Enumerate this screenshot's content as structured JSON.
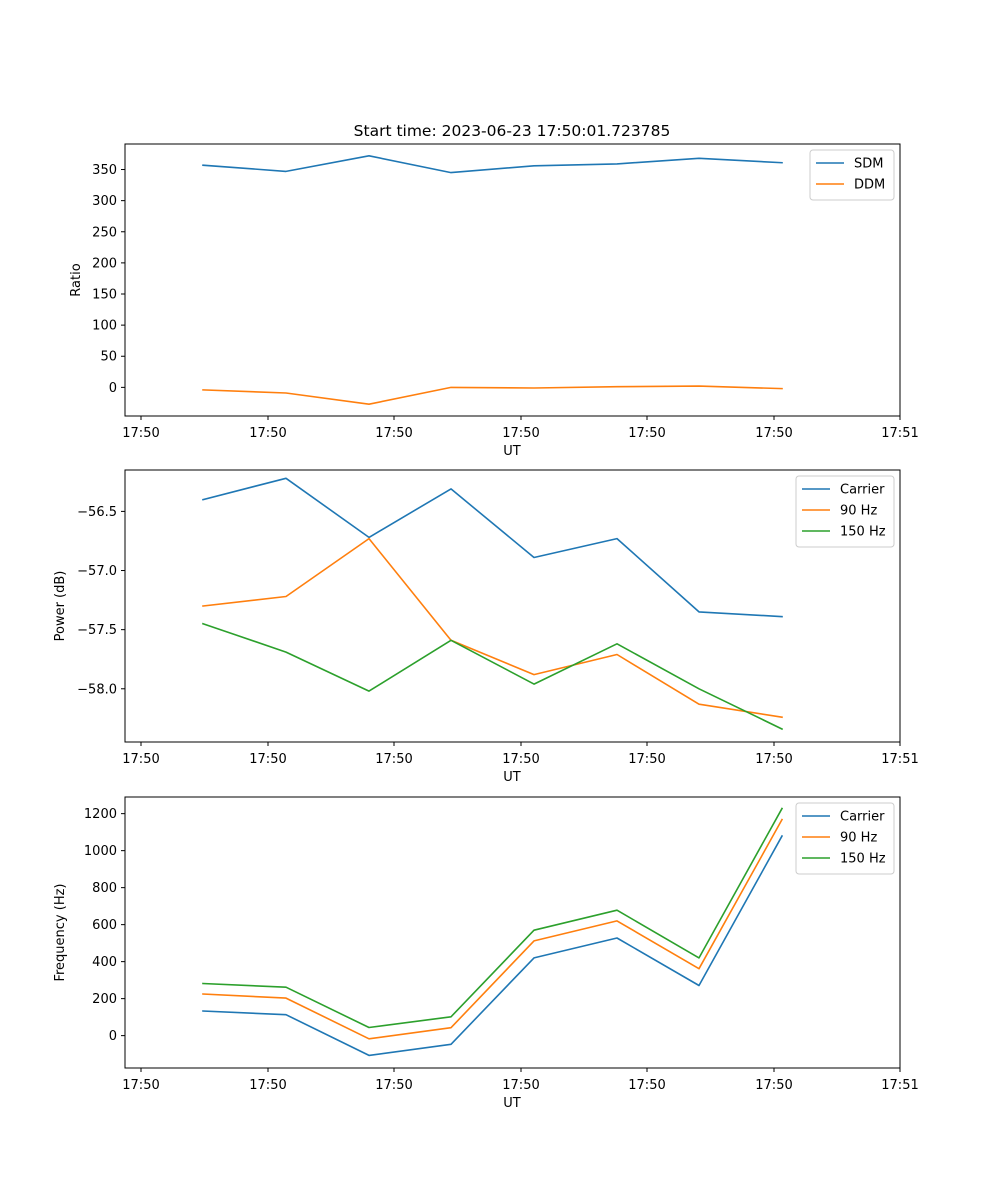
{
  "chart_data": [
    {
      "type": "line",
      "title": "Start time: 2023-06-23 17:50:01.723785",
      "xlabel": "UT",
      "ylabel": "Ratio",
      "x_tick_labels": [
        "17:50",
        "17:50",
        "17:50",
        "17:50",
        "17:50",
        "17:50",
        "17:51"
      ],
      "y_ticks": [
        0,
        50,
        100,
        150,
        200,
        250,
        300,
        350
      ],
      "ylim": [
        -46,
        391
      ],
      "legend_position": "top-right",
      "grid": false,
      "series": [
        {
          "name": "SDM",
          "color": "#1f77b4",
          "values": [
            357,
            347,
            372,
            345,
            356,
            359,
            368,
            361
          ]
        },
        {
          "name": "DDM",
          "color": "#ff7f0e",
          "values": [
            -4,
            -9,
            -27,
            0,
            -1,
            1,
            2,
            -2
          ]
        }
      ]
    },
    {
      "type": "line",
      "title": "",
      "xlabel": "UT",
      "ylabel": "Power (dB)",
      "x_tick_labels": [
        "17:50",
        "17:50",
        "17:50",
        "17:50",
        "17:50",
        "17:50",
        "17:51"
      ],
      "y_ticks": [
        -58.0,
        -57.5,
        -57.0,
        -56.5
      ],
      "y_tick_labels": [
        "−58.0",
        "−57.5",
        "−57.0",
        "−56.5"
      ],
      "ylim": [
        -58.45,
        -56.15
      ],
      "legend_position": "top-right",
      "grid": false,
      "series": [
        {
          "name": "Carrier",
          "color": "#1f77b4",
          "values": [
            -56.4,
            -56.22,
            -56.72,
            -56.31,
            -56.89,
            -56.73,
            -57.35,
            -57.39
          ]
        },
        {
          "name": "90 Hz",
          "color": "#ff7f0e",
          "values": [
            -57.3,
            -57.22,
            -56.73,
            -57.59,
            -57.88,
            -57.71,
            -58.13,
            -58.24
          ]
        },
        {
          "name": "150 Hz",
          "color": "#2ca02c",
          "values": [
            -57.45,
            -57.69,
            -58.02,
            -57.59,
            -57.96,
            -57.62,
            -58.0,
            -58.34
          ]
        }
      ]
    },
    {
      "type": "line",
      "title": "",
      "xlabel": "UT",
      "ylabel": "Frequency (Hz)",
      "x_tick_labels": [
        "17:50",
        "17:50",
        "17:50",
        "17:50",
        "17:50",
        "17:50",
        "17:51"
      ],
      "y_ticks": [
        0,
        200,
        400,
        600,
        800,
        1000,
        1200
      ],
      "ylim": [
        -175,
        1290
      ],
      "legend_position": "top-right",
      "grid": false,
      "series": [
        {
          "name": "Carrier",
          "color": "#1f77b4",
          "values": [
            133,
            113,
            -107,
            -47,
            420,
            528,
            271,
            1079
          ]
        },
        {
          "name": "90 Hz",
          "color": "#ff7f0e",
          "values": [
            225,
            203,
            -17,
            43,
            512,
            620,
            362,
            1168
          ]
        },
        {
          "name": "150 Hz",
          "color": "#2ca02c",
          "values": [
            282,
            262,
            44,
            102,
            570,
            678,
            420,
            1228
          ]
        }
      ]
    }
  ]
}
